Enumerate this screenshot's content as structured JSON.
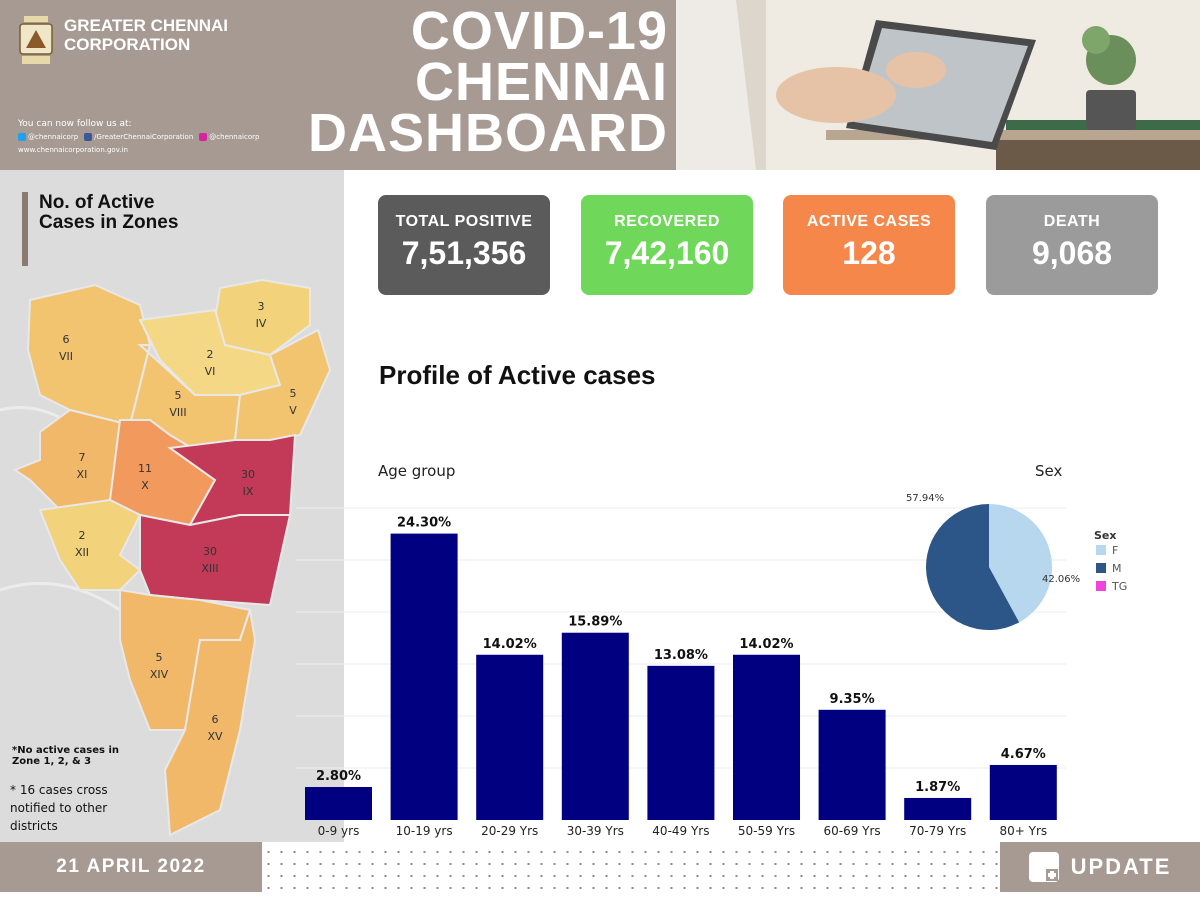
{
  "header": {
    "org_name": "GREATER CHENNAI CORPORATION",
    "follow_text": "You can now follow us at:",
    "twitter": "@chennaicorp",
    "facebook": "/GreaterChennaiCorporation",
    "instagram": "@chennaicorp",
    "website": "www.chennaicorporation.gov.in",
    "title_line1": "COVID-19",
    "title_line2": "CHENNAI",
    "title_line3": "DASHBOARD"
  },
  "stats": {
    "total_positive": {
      "label": "TOTAL POSITIVE",
      "value": "7,51,356",
      "color": "#5b5b5b"
    },
    "recovered": {
      "label": "RECOVERED",
      "value": "7,42,160",
      "color": "#6fd85a"
    },
    "active": {
      "label": "ACTIVE CASES",
      "value": "128",
      "color": "#f5874a"
    },
    "death": {
      "label": "DEATH",
      "value": "9,068",
      "color": "#9b9b9b"
    }
  },
  "zones_panel": {
    "title": "No. of Active Cases in Zones",
    "zones": [
      {
        "count": "6",
        "zone": "VII"
      },
      {
        "count": "3",
        "zone": "IV"
      },
      {
        "count": "2",
        "zone": "VI"
      },
      {
        "count": "5",
        "zone": "VIII"
      },
      {
        "count": "5",
        "zone": "V"
      },
      {
        "count": "7",
        "zone": "XI"
      },
      {
        "count": "11",
        "zone": "X"
      },
      {
        "count": "30",
        "zone": "IX"
      },
      {
        "count": "2",
        "zone": "XII"
      },
      {
        "count": "30",
        "zone": "XIII"
      },
      {
        "count": "5",
        "zone": "XIV"
      },
      {
        "count": "6",
        "zone": "XV"
      }
    ],
    "note1": "*No active cases in Zone 1, 2, & 3",
    "note2": "* 16  cases cross notified to other districts"
  },
  "profile_title": "Profile of Active cases",
  "chart_data": [
    {
      "type": "bar",
      "title": "Age group",
      "categories": [
        "0-9 yrs",
        "10-19 yrs",
        "20-29 Yrs",
        "30-39 Yrs",
        "40-49 Yrs",
        "50-59 Yrs",
        "60-69 Yrs",
        "70-79 Yrs",
        "80+ Yrs"
      ],
      "values": [
        2.8,
        24.3,
        14.02,
        15.89,
        13.08,
        14.02,
        9.35,
        1.87,
        4.67
      ],
      "value_labels": [
        "2.80%",
        "24.30%",
        "14.02%",
        "15.89%",
        "13.08%",
        "14.02%",
        "9.35%",
        "1.87%",
        "4.67%"
      ],
      "ylim": [
        0,
        28
      ],
      "bar_color": "#000080",
      "grid": true
    },
    {
      "type": "pie",
      "title": "Sex",
      "legend_title": "Sex",
      "labels": [
        "F",
        "M",
        "TG"
      ],
      "values": [
        42.06,
        57.94,
        0
      ],
      "value_labels": [
        "42.06%",
        "57.94%",
        ""
      ],
      "colors": [
        "#b7d7ee",
        "#2b5687",
        "#ee44dd"
      ]
    }
  ],
  "footer": {
    "date": "21 APRIL 2022",
    "update_label": "UPDATE"
  }
}
